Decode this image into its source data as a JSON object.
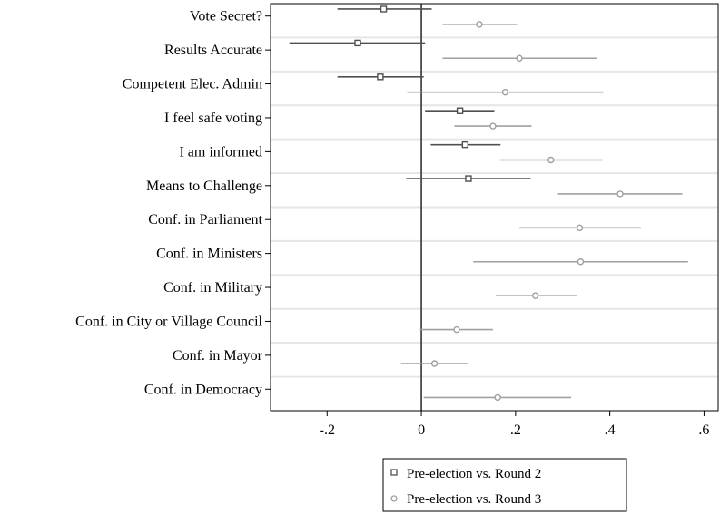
{
  "chart_data": {
    "type": "scatter",
    "subtype": "coefficient-plot",
    "title": "",
    "xlabel": "",
    "ylabel": "",
    "xlim": [
      -0.32,
      0.63
    ],
    "x_ticks": [
      -0.2,
      0,
      0.2,
      0.4,
      0.6
    ],
    "x_tick_labels": [
      "-.2",
      "0",
      ".2",
      ".4",
      ".6"
    ],
    "reference_line": 0,
    "grid": false,
    "legend_position": "bottom",
    "categories": [
      "Vote Secret?",
      "Results Accurate",
      "Competent Elec. Admin",
      "I feel safe voting",
      "I am informed",
      "Means to Challenge",
      "Conf. in Parliament",
      "Conf. in Ministers",
      "Conf. in Military",
      "Conf. in City or Village Council",
      "Conf. in Mayor",
      "Conf. in Democracy"
    ],
    "series": [
      {
        "name": "Pre-election vs. Round 2",
        "marker": "square",
        "color": "#505050",
        "estimates": [
          -0.08,
          -0.135,
          -0.087,
          0.082,
          0.093,
          0.1,
          null,
          null,
          null,
          null,
          null,
          null
        ],
        "ci_low": [
          -0.178,
          -0.28,
          -0.178,
          0.008,
          0.02,
          -0.032,
          null,
          null,
          null,
          null,
          null,
          null
        ],
        "ci_high": [
          0.022,
          0.008,
          0.005,
          0.155,
          0.168,
          0.232,
          null,
          null,
          null,
          null,
          null,
          null
        ]
      },
      {
        "name": "Pre-election vs. Round 3",
        "marker": "circle",
        "color": "#a0a0a0",
        "estimates": [
          0.123,
          0.208,
          0.178,
          0.152,
          0.275,
          0.422,
          0.336,
          0.338,
          0.242,
          0.075,
          0.028,
          0.162
        ],
        "ci_low": [
          0.045,
          0.045,
          -0.03,
          0.07,
          0.167,
          0.29,
          0.208,
          0.11,
          0.158,
          -0.003,
          -0.043,
          0.005
        ],
        "ci_high": [
          0.203,
          0.373,
          0.386,
          0.234,
          0.385,
          0.554,
          0.466,
          0.566,
          0.33,
          0.152,
          0.1,
          0.318
        ]
      }
    ]
  }
}
